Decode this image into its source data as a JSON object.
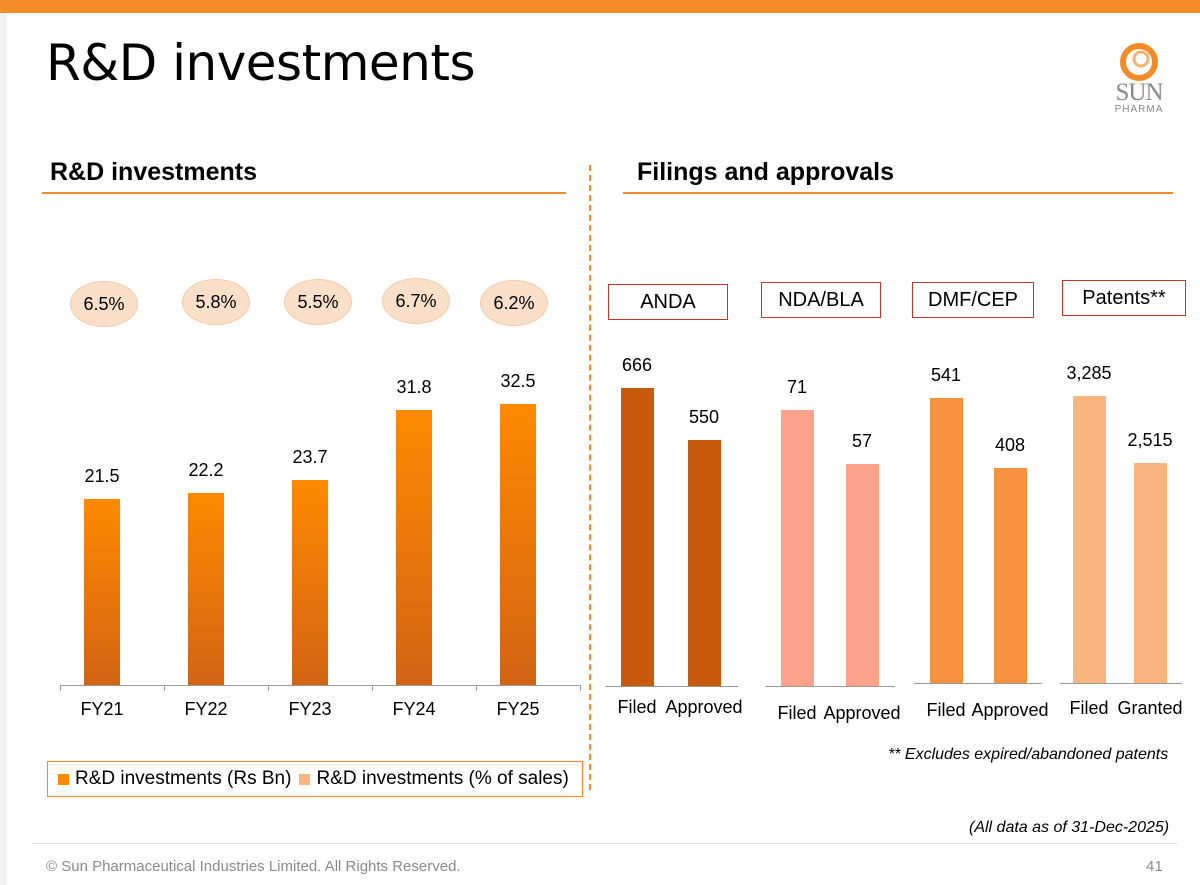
{
  "page": {
    "title": "R&D investments",
    "footer": "© Sun Pharmaceutical Industries Limited. All Rights Reserved.",
    "page_number": "41",
    "date_note": "(All data as of 31-Dec-2025)"
  },
  "logo": {
    "line1": "SUN",
    "line2": "PHARMA"
  },
  "colors": {
    "accent": "#F28C28",
    "rd_bar_top": "#FF8A00",
    "rd_bar_bottom": "#D26414",
    "anda": "#C85A0E",
    "nda": "#FBA38A",
    "dmf": "#F7923F",
    "patents": "#F9B57E",
    "pill_fill": "#FBE0C9",
    "category_border": "#C0392B"
  },
  "rd_section": {
    "heading": "R&D investments"
  },
  "filings_section": {
    "heading": "Filings and approvals",
    "patents_note": "** Excludes expired/abandoned patents"
  },
  "chart_data": [
    {
      "type": "bar",
      "title": "R&D investments",
      "categories": [
        "FY21",
        "FY22",
        "FY23",
        "FY24",
        "FY25"
      ],
      "series": [
        {
          "name": "R&D investments (Rs Bn)",
          "values": [
            21.5,
            22.2,
            23.7,
            31.8,
            32.5
          ],
          "labels": [
            "21.5",
            "22.2",
            "23.7",
            "31.8",
            "32.5"
          ]
        },
        {
          "name": "R&D investments (% of sales)",
          "values": [
            6.5,
            5.8,
            5.5,
            6.7,
            6.2
          ],
          "labels": [
            "6.5%",
            "5.8%",
            "5.5%",
            "6.7%",
            "6.2%"
          ]
        }
      ],
      "ylim": [
        0,
        37
      ],
      "legend": [
        "R&D investments (Rs Bn)",
        "R&D investments (% of sales)"
      ]
    },
    {
      "type": "bar",
      "title": "Filings and approvals",
      "groups": [
        {
          "name": "ANDA",
          "color_key": "anda",
          "categories": [
            "Filed",
            "Approved"
          ],
          "values": [
            666,
            550
          ],
          "labels": [
            "666",
            "550"
          ]
        },
        {
          "name": "NDA/BLA",
          "color_key": "nda",
          "categories": [
            "Filed",
            "Approved"
          ],
          "values": [
            71,
            57
          ],
          "labels": [
            "71",
            "57"
          ]
        },
        {
          "name": "DMF/CEP",
          "color_key": "dmf",
          "categories": [
            "Filed",
            "Approved"
          ],
          "values": [
            541,
            408
          ],
          "labels": [
            "541",
            "408"
          ]
        },
        {
          "name": "Patents**",
          "color_key": "patents",
          "categories": [
            "Filed",
            "Granted"
          ],
          "values": [
            3285,
            2515
          ],
          "labels": [
            "3,285",
            "2,515"
          ]
        }
      ],
      "note": "each group is scaled independently"
    }
  ]
}
